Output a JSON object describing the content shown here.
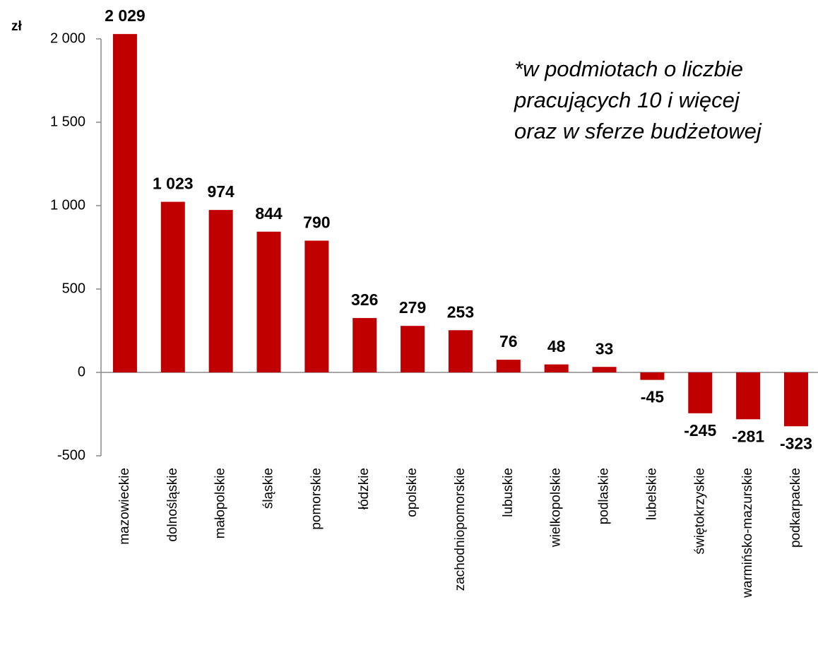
{
  "chart_data": {
    "type": "bar",
    "ylabel": "zł",
    "annotation": [
      "*w podmiotach o liczbie",
      "pracujących 10 i więcej",
      "oraz w sferze budżetowej"
    ],
    "categories": [
      "mazowieckie",
      "dolnośląskie",
      "małopolskie",
      "śląskie",
      "pomorskie",
      "łódzkie",
      "opolskie",
      "zachodniopomorskie",
      "lubuskie",
      "wielkopolskie",
      "podlaskie",
      "lubelskie",
      "świętokrzyskie",
      "warmińsko-mazurskie",
      "podkarpackie"
    ],
    "values": [
      2029,
      1023,
      974,
      844,
      790,
      326,
      279,
      253,
      76,
      48,
      33,
      -45,
      -245,
      -281,
      -323
    ],
    "value_labels": [
      "2 029",
      "1 023",
      "974",
      "844",
      "790",
      "326",
      "279",
      "253",
      "76",
      "48",
      "33",
      "-45",
      "-245",
      "-281",
      "-323"
    ],
    "color": "#c00000",
    "ylim": [
      -500,
      2000
    ],
    "yticks": [
      -500,
      0,
      500,
      {
        "value": 1000,
        "label": "1 000"
      },
      {
        "value": 1500,
        "label": "1 500"
      },
      {
        "value": 2000,
        "label": "2 000"
      }
    ],
    "grid": false
  }
}
